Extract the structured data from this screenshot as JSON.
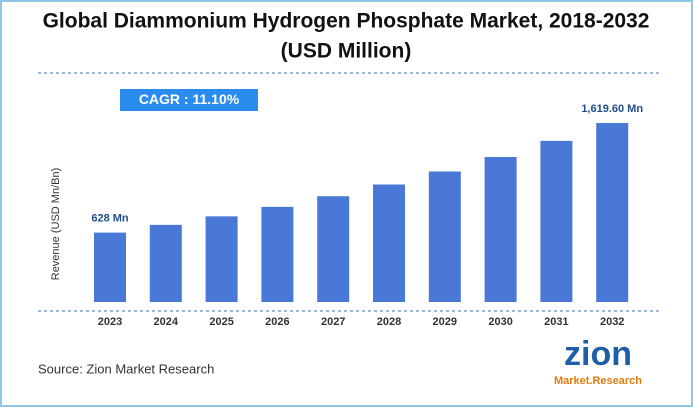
{
  "chart_data": {
    "type": "bar",
    "title": [
      "Global Diammonium Hydrogen Phosphate Market, 2018-2032",
      "(USD Million)"
    ],
    "annotation": "CAGR : 11.10%",
    "y_label": "Revenue (USD Mn/Bn)",
    "categories": [
      "2023",
      "2024",
      "2025",
      "2026",
      "2027",
      "2028",
      "2029",
      "2030",
      "2031",
      "2032"
    ],
    "values": [
      628,
      698,
      775,
      861,
      957,
      1063,
      1181,
      1312,
      1458,
      1619.6
    ],
    "value_labels": [
      "628 Mn",
      null,
      null,
      null,
      null,
      null,
      null,
      null,
      null,
      "1,619.60 Mn"
    ],
    "color": "#4a78d6",
    "source": "Source: Zion Market Research",
    "logo": {
      "top": "zion",
      "bottom": "Market.Research"
    }
  }
}
